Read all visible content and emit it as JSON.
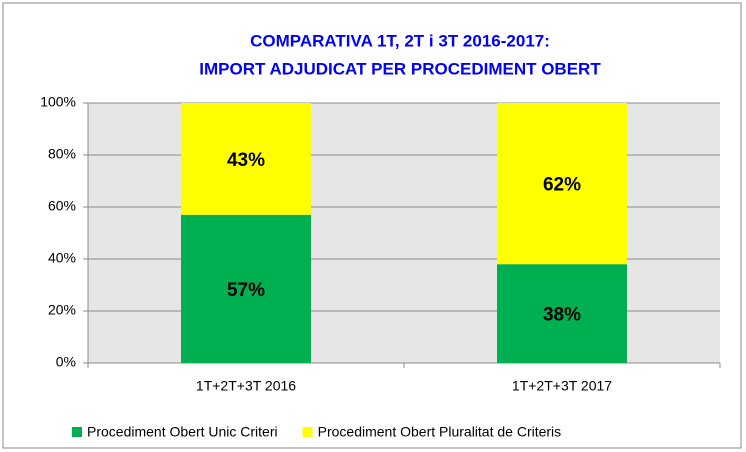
{
  "chart_data": {
    "type": "stacked_bar",
    "title": [
      "COMPARATIVA 1T, 2T i 3T  2016-2017:",
      "IMPORT ADJUDICAT PER PROCEDIMENT OBERT"
    ],
    "categories": [
      "1T+2T+3T 2016",
      "1T+2T+3T 2017"
    ],
    "series": [
      {
        "name": "Procediment Obert Unic Criteri",
        "color": "#00b050",
        "values": [
          57,
          38
        ],
        "value_labels": [
          "57%",
          "38%"
        ]
      },
      {
        "name": "Procediment Obert Pluralitat de Criteris",
        "color": "#ffff00",
        "values": [
          43,
          62
        ],
        "value_labels": [
          "43%",
          "62%"
        ]
      }
    ],
    "ylim": [
      0,
      100
    ],
    "yticks": [
      {
        "value": 0,
        "label": "0%"
      },
      {
        "value": 20,
        "label": "20%"
      },
      {
        "value": 40,
        "label": "40%"
      },
      {
        "value": 60,
        "label": "60%"
      },
      {
        "value": 80,
        "label": "80%"
      },
      {
        "value": 100,
        "label": "100%"
      }
    ],
    "grid": true,
    "legend": "bottom"
  }
}
